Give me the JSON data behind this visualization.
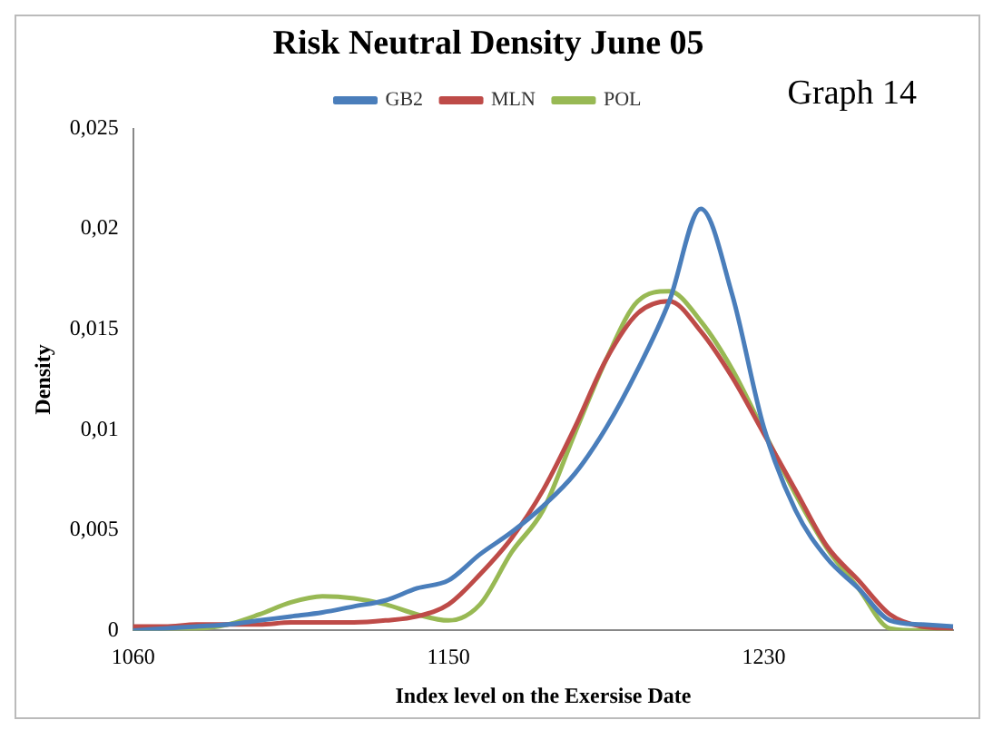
{
  "chart_data": {
    "type": "line",
    "title": "Risk Neutral Density June 05",
    "xlabel": "Index level on the Exersise Date",
    "ylabel": "Density",
    "annotations": [
      "Graph 14"
    ],
    "categories": [
      "1060",
      null,
      null,
      null,
      null,
      null,
      null,
      null,
      null,
      null,
      "1150",
      null,
      null,
      null,
      null,
      null,
      null,
      null,
      null,
      null,
      "1230",
      null,
      null,
      null,
      null,
      null,
      null
    ],
    "series": [
      {
        "name": "GB2",
        "color": "#4a7ebb",
        "values": [
          0,
          0.0001,
          0.0002,
          0.0003,
          0.0005,
          0.0007,
          0.0009,
          0.0012,
          0.0015,
          0.0021,
          0.0025,
          0.0038,
          0.0049,
          0.0062,
          0.0078,
          0.0101,
          0.013,
          0.0164,
          0.021,
          0.0167,
          0.0101,
          0.006,
          0.0036,
          0.0021,
          0.0005,
          0.0003,
          0.0002
        ]
      },
      {
        "name": "MLN",
        "color": "#be4b48",
        "values": [
          0.0002,
          0.0002,
          0.0003,
          0.0003,
          0.0003,
          0.0004,
          0.0004,
          0.0004,
          0.0005,
          0.0007,
          0.0013,
          0.0028,
          0.0046,
          0.007,
          0.0101,
          0.0135,
          0.0158,
          0.0164,
          0.0149,
          0.0126,
          0.0098,
          0.007,
          0.0042,
          0.0025,
          0.0008,
          0.0002,
          0.0001
        ]
      },
      {
        "name": "POL",
        "color": "#98b954",
        "values": [
          0,
          0.0001,
          0.0001,
          0.0003,
          0.0008,
          0.0014,
          0.0017,
          0.0016,
          0.0013,
          0.0008,
          0.0005,
          0.0013,
          0.0039,
          0.006,
          0.0098,
          0.0135,
          0.0164,
          0.0169,
          0.0154,
          0.013,
          0.0099,
          0.0068,
          0.0041,
          0.0021,
          0.0001,
          0,
          0
        ]
      }
    ],
    "ylim": [
      0,
      0.025
    ],
    "yticks": [
      {
        "value": 0,
        "label": "0"
      },
      {
        "value": 0.005,
        "label": "0,005"
      },
      {
        "value": 0.01,
        "label": "0,01"
      },
      {
        "value": 0.015,
        "label": "0,015"
      },
      {
        "value": 0.02,
        "label": "0,02"
      },
      {
        "value": 0.025,
        "label": "0,025"
      }
    ],
    "grid": false,
    "legend": "top",
    "marker": "none",
    "line_style": "solid"
  }
}
